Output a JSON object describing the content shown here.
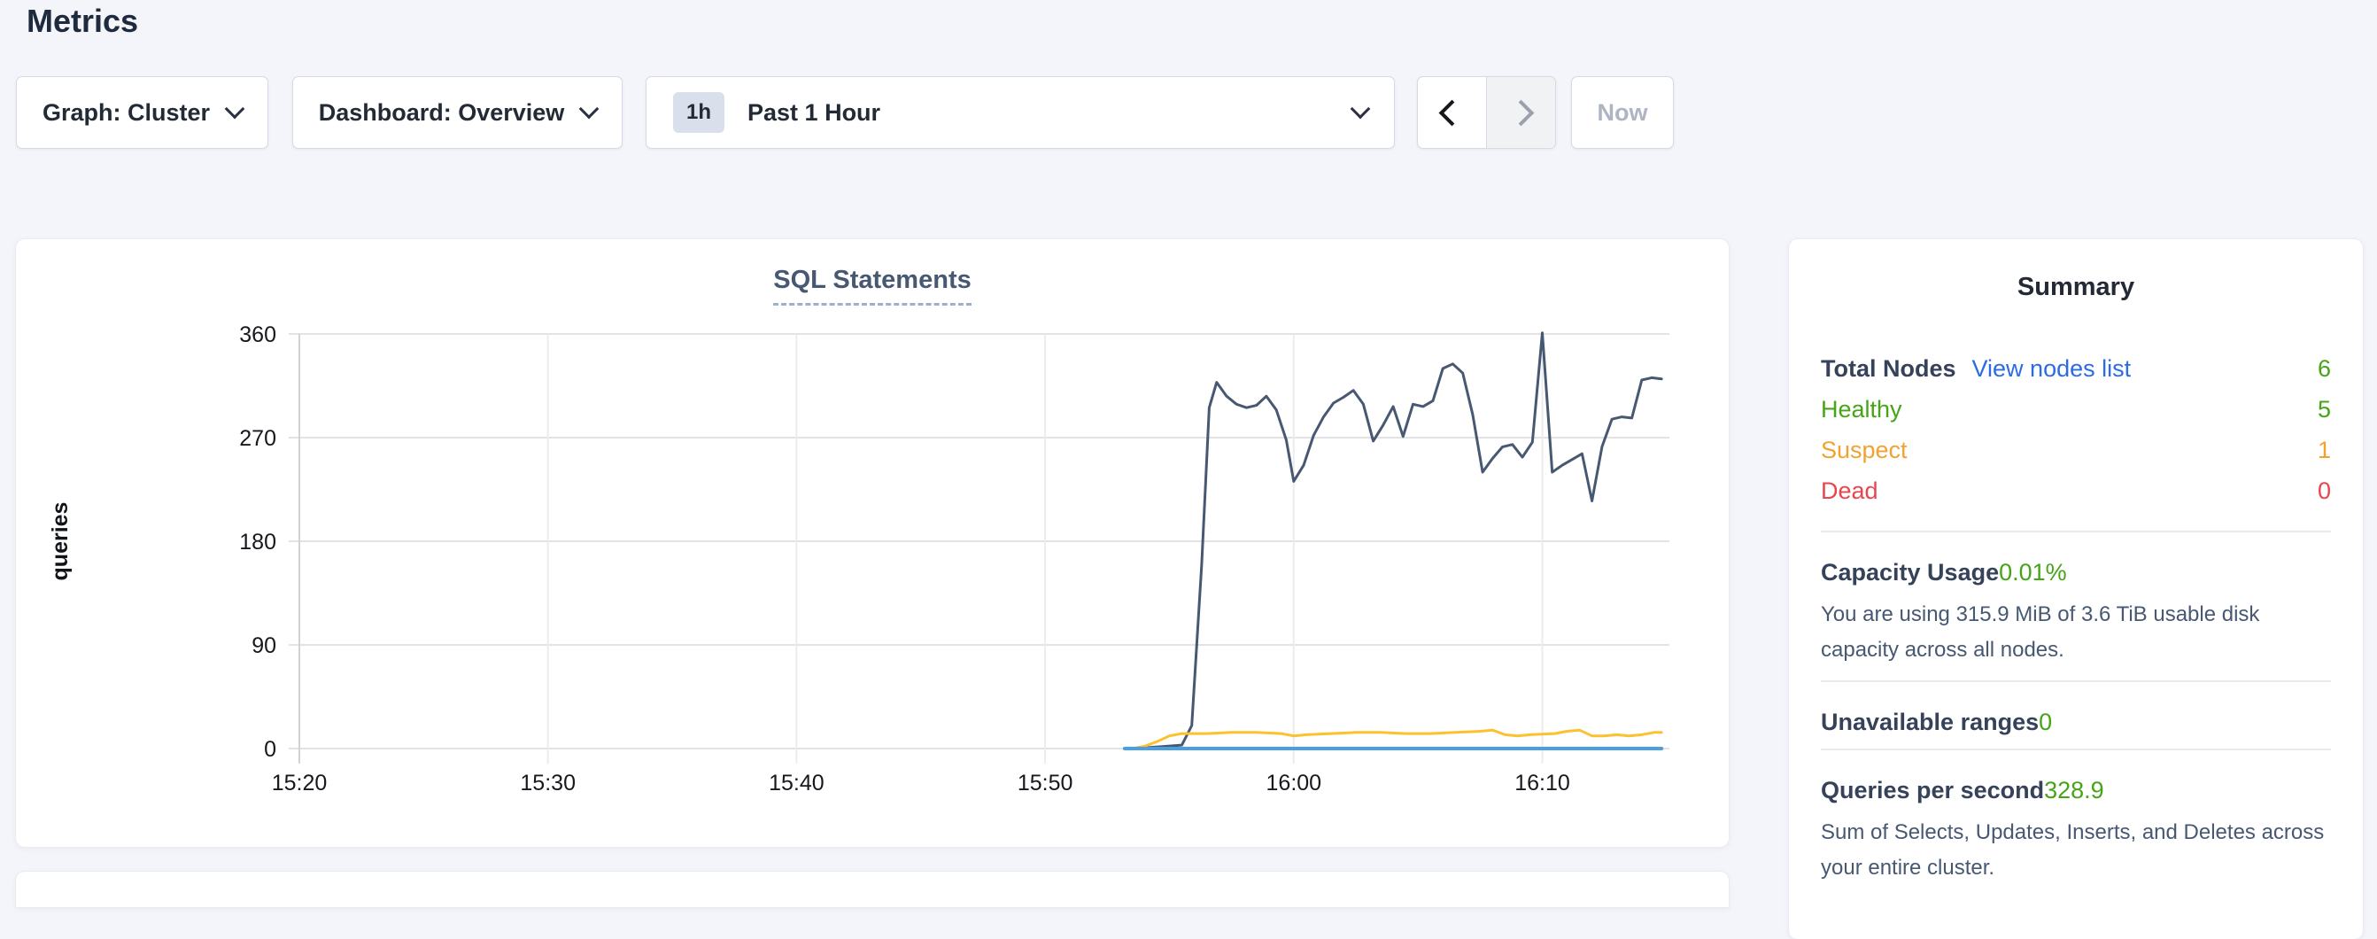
{
  "page": {
    "title": "Metrics",
    "background_color": "#f4f5fa"
  },
  "toolbar": {
    "graph_label": "Graph: Cluster",
    "dashboard_label": "Dashboard: Overview",
    "time_badge": "1h",
    "time_label": "Past 1 Hour",
    "back_enabled": true,
    "forward_disabled": true,
    "now_label": "Now",
    "now_disabled": true
  },
  "icons": {
    "chevron_down": "css-chevron-down",
    "chevron_left": "css-chevron-left",
    "chevron_right": "css-chevron-right"
  },
  "chart_data": {
    "type": "line",
    "title": "SQL Statements",
    "ylabel": "queries",
    "ylim": [
      0,
      360
    ],
    "y_ticks": [
      0,
      90,
      180,
      270,
      360
    ],
    "x_ticks": [
      "15:20",
      "15:30",
      "15:40",
      "15:50",
      "16:00",
      "16:10"
    ],
    "x_tick_minutes": [
      0,
      10,
      20,
      30,
      40,
      50
    ],
    "x_range_minutes": [
      0,
      54.8
    ],
    "grid": true,
    "legend": "none",
    "series": [
      {
        "name": "series-navy",
        "color": "#475872",
        "width": 3,
        "points": [
          [
            33.5,
            0
          ],
          [
            34.2,
            1
          ],
          [
            34.9,
            2
          ],
          [
            35.5,
            3
          ],
          [
            35.9,
            20
          ],
          [
            36.3,
            160
          ],
          [
            36.6,
            296
          ],
          [
            36.9,
            318
          ],
          [
            37.3,
            306
          ],
          [
            37.7,
            299
          ],
          [
            38.1,
            296
          ],
          [
            38.5,
            298
          ],
          [
            38.9,
            306
          ],
          [
            39.3,
            294
          ],
          [
            39.7,
            268
          ],
          [
            40.0,
            232
          ],
          [
            40.4,
            246
          ],
          [
            40.8,
            272
          ],
          [
            41.2,
            288
          ],
          [
            41.6,
            300
          ],
          [
            42.0,
            305
          ],
          [
            42.4,
            311
          ],
          [
            42.8,
            299
          ],
          [
            43.2,
            267
          ],
          [
            43.6,
            281
          ],
          [
            44.0,
            297
          ],
          [
            44.4,
            271
          ],
          [
            44.8,
            299
          ],
          [
            45.2,
            297
          ],
          [
            45.6,
            302
          ],
          [
            46.0,
            330
          ],
          [
            46.4,
            334
          ],
          [
            46.8,
            326
          ],
          [
            47.2,
            290
          ],
          [
            47.6,
            240
          ],
          [
            48.0,
            252
          ],
          [
            48.4,
            262
          ],
          [
            48.8,
            264
          ],
          [
            49.2,
            253
          ],
          [
            49.6,
            266
          ],
          [
            50.0,
            361
          ],
          [
            50.4,
            240
          ],
          [
            50.8,
            246
          ],
          [
            51.2,
            251
          ],
          [
            51.6,
            256
          ],
          [
            52.0,
            215
          ],
          [
            52.4,
            262
          ],
          [
            52.8,
            286
          ],
          [
            53.2,
            288
          ],
          [
            53.6,
            287
          ],
          [
            54.0,
            320
          ],
          [
            54.4,
            322
          ],
          [
            54.8,
            321
          ]
        ]
      },
      {
        "name": "series-yellow",
        "color": "#fdc12e",
        "width": 3,
        "points": [
          [
            33.5,
            0
          ],
          [
            34.0,
            2
          ],
          [
            34.5,
            6
          ],
          [
            35.0,
            11
          ],
          [
            35.5,
            13
          ],
          [
            36.5,
            13
          ],
          [
            37.5,
            14
          ],
          [
            38.5,
            14
          ],
          [
            39.5,
            13
          ],
          [
            40.0,
            11
          ],
          [
            40.5,
            12
          ],
          [
            41.5,
            13
          ],
          [
            42.5,
            14
          ],
          [
            43.5,
            14
          ],
          [
            44.5,
            13
          ],
          [
            45.5,
            13
          ],
          [
            46.5,
            14
          ],
          [
            47.5,
            15
          ],
          [
            48.0,
            16
          ],
          [
            48.5,
            12
          ],
          [
            49.0,
            11
          ],
          [
            49.5,
            12
          ],
          [
            50.5,
            13
          ],
          [
            51.0,
            15
          ],
          [
            51.5,
            16
          ],
          [
            52.0,
            11
          ],
          [
            52.5,
            11
          ],
          [
            53.0,
            12
          ],
          [
            53.5,
            11
          ],
          [
            54.0,
            12
          ],
          [
            54.5,
            14
          ],
          [
            54.8,
            14
          ]
        ]
      },
      {
        "name": "series-blue",
        "color": "#4a9fe2",
        "width": 4,
        "points": [
          [
            33.2,
            0
          ],
          [
            54.8,
            0
          ]
        ]
      }
    ]
  },
  "summary": {
    "title": "Summary",
    "nodes": {
      "total_label": "Total Nodes",
      "link_label": "View nodes list",
      "total_value": "6",
      "statuses": [
        {
          "label": "Healthy",
          "value": "5",
          "color": "#46a417"
        },
        {
          "label": "Suspect",
          "value": "1",
          "color": "#f0a330"
        },
        {
          "label": "Dead",
          "value": "0",
          "color": "#e8454f"
        }
      ]
    },
    "capacity": {
      "label": "Capacity Usage",
      "value": "0.01%",
      "description": "You are using 315.9 MiB of 3.6 TiB usable disk capacity across all nodes."
    },
    "unavailable_ranges": {
      "label": "Unavailable ranges",
      "value": "0"
    },
    "qps": {
      "label": "Queries per second",
      "value": "328.9",
      "description": "Sum of Selects, Updates, Inserts, and Deletes across your entire cluster."
    },
    "value_color": "#46a417",
    "link_color": "#2b6be4"
  }
}
